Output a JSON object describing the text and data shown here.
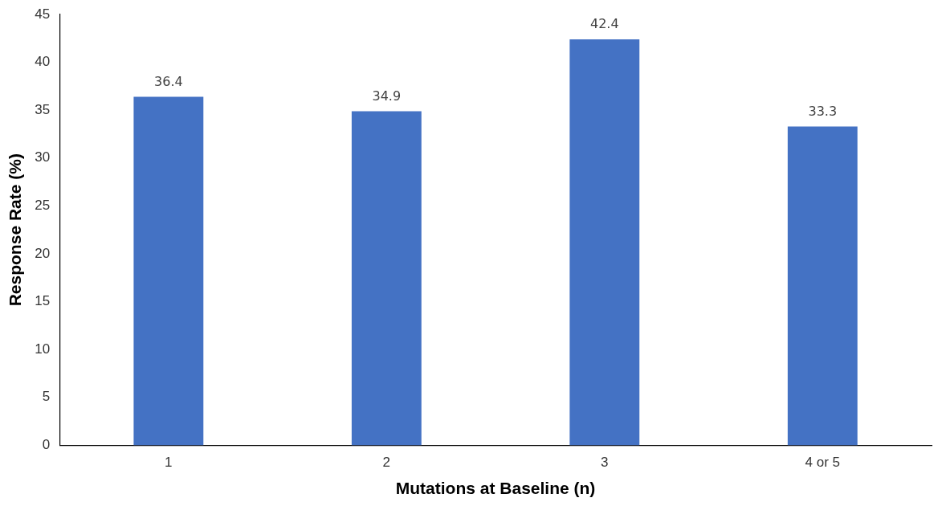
{
  "chart_data": {
    "type": "bar",
    "xlabel": "Mutations at Baseline (n)",
    "ylabel": "Response Rate (%)",
    "categories": [
      "1",
      "2",
      "3",
      "4 or 5"
    ],
    "values": [
      36.4,
      34.9,
      42.4,
      33.3
    ],
    "color": "#4472c4",
    "ylim": [
      0,
      45
    ],
    "yticks": [
      0,
      5,
      10,
      15,
      20,
      25,
      30,
      35,
      40,
      45
    ],
    "grid": false,
    "legend": false,
    "data_labels": true
  }
}
